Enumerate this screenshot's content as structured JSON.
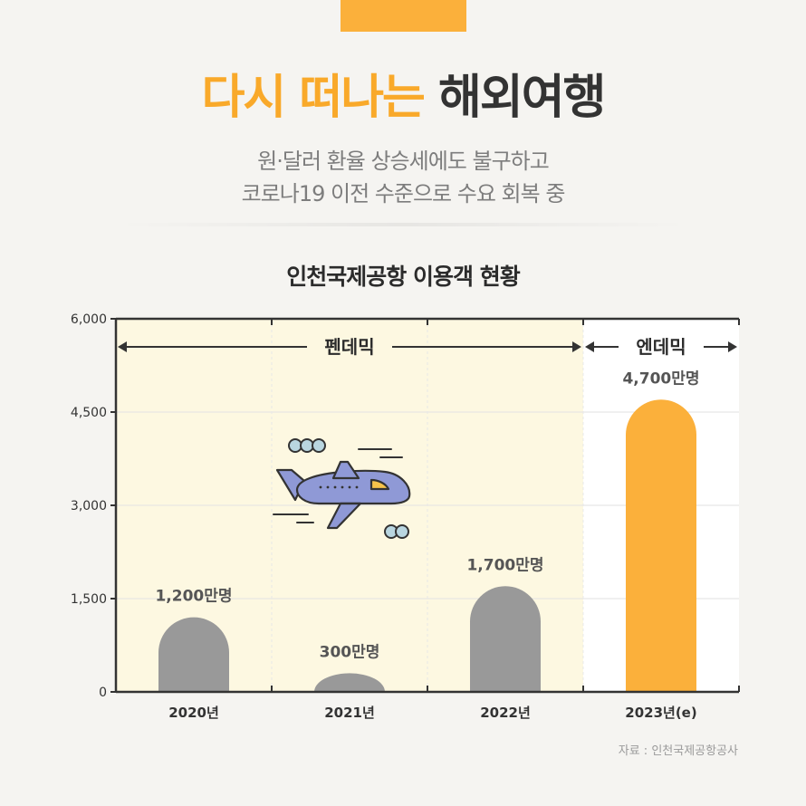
{
  "header": {
    "title_highlight": "다시 떠나는",
    "title_rest": "해외여행",
    "subtitle_line1": "원·달러 환율 상승세에도 불구하고",
    "subtitle_line2": "코로나19 이전 수준으로 수요 회복 중"
  },
  "colors": {
    "accent": "#fbb03b",
    "bar_gray": "#999999",
    "pandemic_bg": "#fdf8e1",
    "highlight_label": "#f9a92a"
  },
  "chart_data": {
    "type": "bar",
    "title": "인천국제공항 이용객 현황",
    "categories": [
      "2020년",
      "2021년",
      "2022년",
      "2023년(e)"
    ],
    "values": [
      1200,
      300,
      1700,
      4700
    ],
    "data_labels": [
      "1,200만명",
      "300만명",
      "1,700만명",
      "4,700만명"
    ],
    "highlight_index": 3,
    "ylim": [
      0,
      6000
    ],
    "yticks": [
      0,
      1500,
      3000,
      4500,
      6000
    ],
    "ytick_labels": [
      "0",
      "1,500",
      "3,000",
      "4,500",
      "6,000"
    ],
    "grid": true,
    "periods": [
      {
        "label": "펜데믹",
        "from": 0,
        "to": 2
      },
      {
        "label": "엔데믹",
        "from": 3,
        "to": 3
      }
    ]
  },
  "illustration": {
    "icon": "airplane-icon",
    "decor": [
      "cloud-icon",
      "cloud-icon"
    ]
  },
  "footer": {
    "source": "자료 : 인천국제공항공사"
  }
}
